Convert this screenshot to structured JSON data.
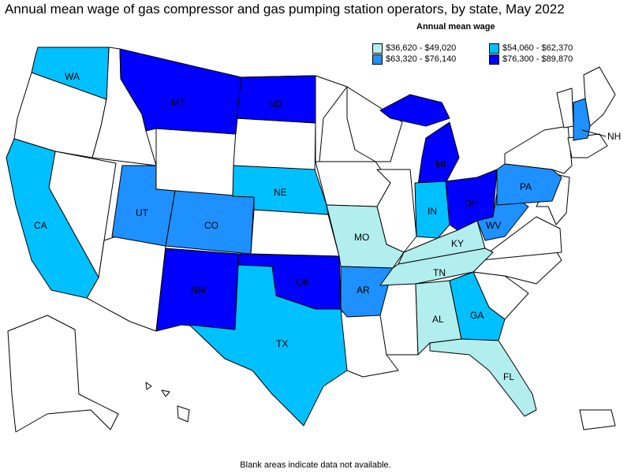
{
  "title": "Annual mean wage of gas compressor and gas pumping station operators, by state, May 2022",
  "footer": "Blank areas indicate data not available.",
  "legend": {
    "title": "Annual mean wage",
    "items": [
      {
        "label": "$36,620 - $49,020",
        "color": "#b2eeee"
      },
      {
        "label": "$54,060 - $62,370",
        "color": "#00c0ff"
      },
      {
        "label": "$63,320 - $76,140",
        "color": "#1e90ff"
      },
      {
        "label": "$76,300 - $89,870",
        "color": "#0000ff"
      }
    ]
  },
  "colors": {
    "no_data": "#ffffff",
    "border": "#000000"
  },
  "states": {
    "WA": {
      "label": "WA",
      "bin": 1
    },
    "CA": {
      "label": "CA",
      "bin": 1
    },
    "MT": {
      "label": "MT",
      "bin": 3
    },
    "ND": {
      "label": "ND",
      "bin": 3
    },
    "UT": {
      "label": "UT",
      "bin": 2
    },
    "CO": {
      "label": "CO",
      "bin": 2
    },
    "NE": {
      "label": "NE",
      "bin": 1
    },
    "NM": {
      "label": "NM",
      "bin": 3
    },
    "OK": {
      "label": "OK",
      "bin": 3
    },
    "TX": {
      "label": "TX",
      "bin": 1
    },
    "MO": {
      "label": "MO",
      "bin": 0
    },
    "AR": {
      "label": "AR",
      "bin": 2
    },
    "MI": {
      "label": "MI",
      "bin": 3
    },
    "IN": {
      "label": "IN",
      "bin": 1
    },
    "OH": {
      "label": "OH",
      "bin": 3
    },
    "KY": {
      "label": "KY",
      "bin": 0
    },
    "TN": {
      "label": "TN",
      "bin": 0
    },
    "WV": {
      "label": "WV",
      "bin": 2
    },
    "PA": {
      "label": "PA",
      "bin": 2
    },
    "AL": {
      "label": "AL",
      "bin": 0
    },
    "GA": {
      "label": "GA",
      "bin": 1
    },
    "FL": {
      "label": "FL",
      "bin": 0
    },
    "NH": {
      "label": "NH",
      "bin": 2
    }
  }
}
